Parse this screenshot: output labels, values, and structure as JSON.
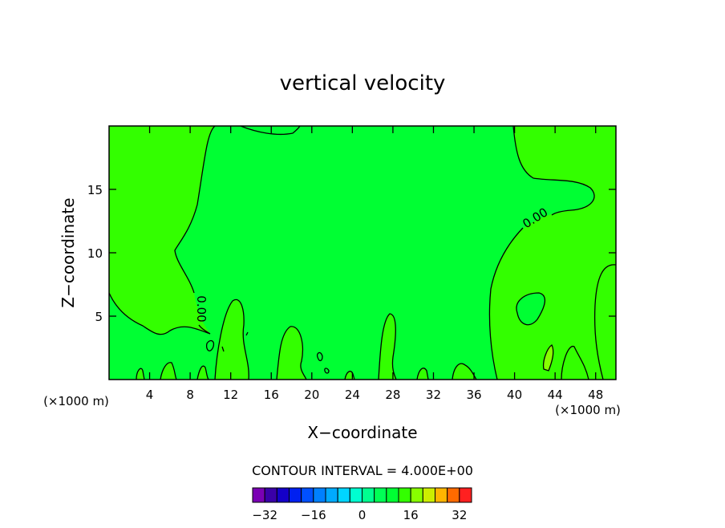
{
  "chart_data": {
    "type": "contour",
    "title": "vertical velocity",
    "xlabel": "X−coordinate",
    "ylabel": "Z−coordinate",
    "x_unit_labels": [
      "(×1000 m)",
      "(×1000 m)"
    ],
    "xlim": [
      0,
      50
    ],
    "ylim": [
      0,
      20
    ],
    "xticks": [
      4,
      8,
      12,
      16,
      20,
      24,
      28,
      32,
      36,
      40,
      44,
      48
    ],
    "yticks": [
      5,
      10,
      15
    ],
    "contour_labels": [
      {
        "value": 0,
        "label": "0.00"
      },
      {
        "value": 0,
        "label": "0.00"
      }
    ],
    "contour_interval_label": "CONTOUR INTERVAL = 4.000E+00",
    "levels": [
      -36,
      -32,
      -28,
      -24,
      -20,
      -16,
      -12,
      -8,
      -4,
      0,
      4,
      8,
      12,
      16,
      20,
      24,
      28,
      32,
      36
    ],
    "colors": [
      "#7a00b4",
      "#3a00a8",
      "#1400c8",
      "#0020f0",
      "#0050ff",
      "#0080ff",
      "#00aaff",
      "#00d4ff",
      "#00ffd0",
      "#00ff90",
      "#00ff55",
      "#00ff33",
      "#33ff00",
      "#88ff00",
      "#ccee00",
      "#ffb400",
      "#ff6a00",
      "#ff2020"
    ],
    "colorbar_ticks": [
      {
        "value": -32,
        "label": "−32"
      },
      {
        "value": -16,
        "label": "−16"
      },
      0,
      16,
      32
    ]
  }
}
